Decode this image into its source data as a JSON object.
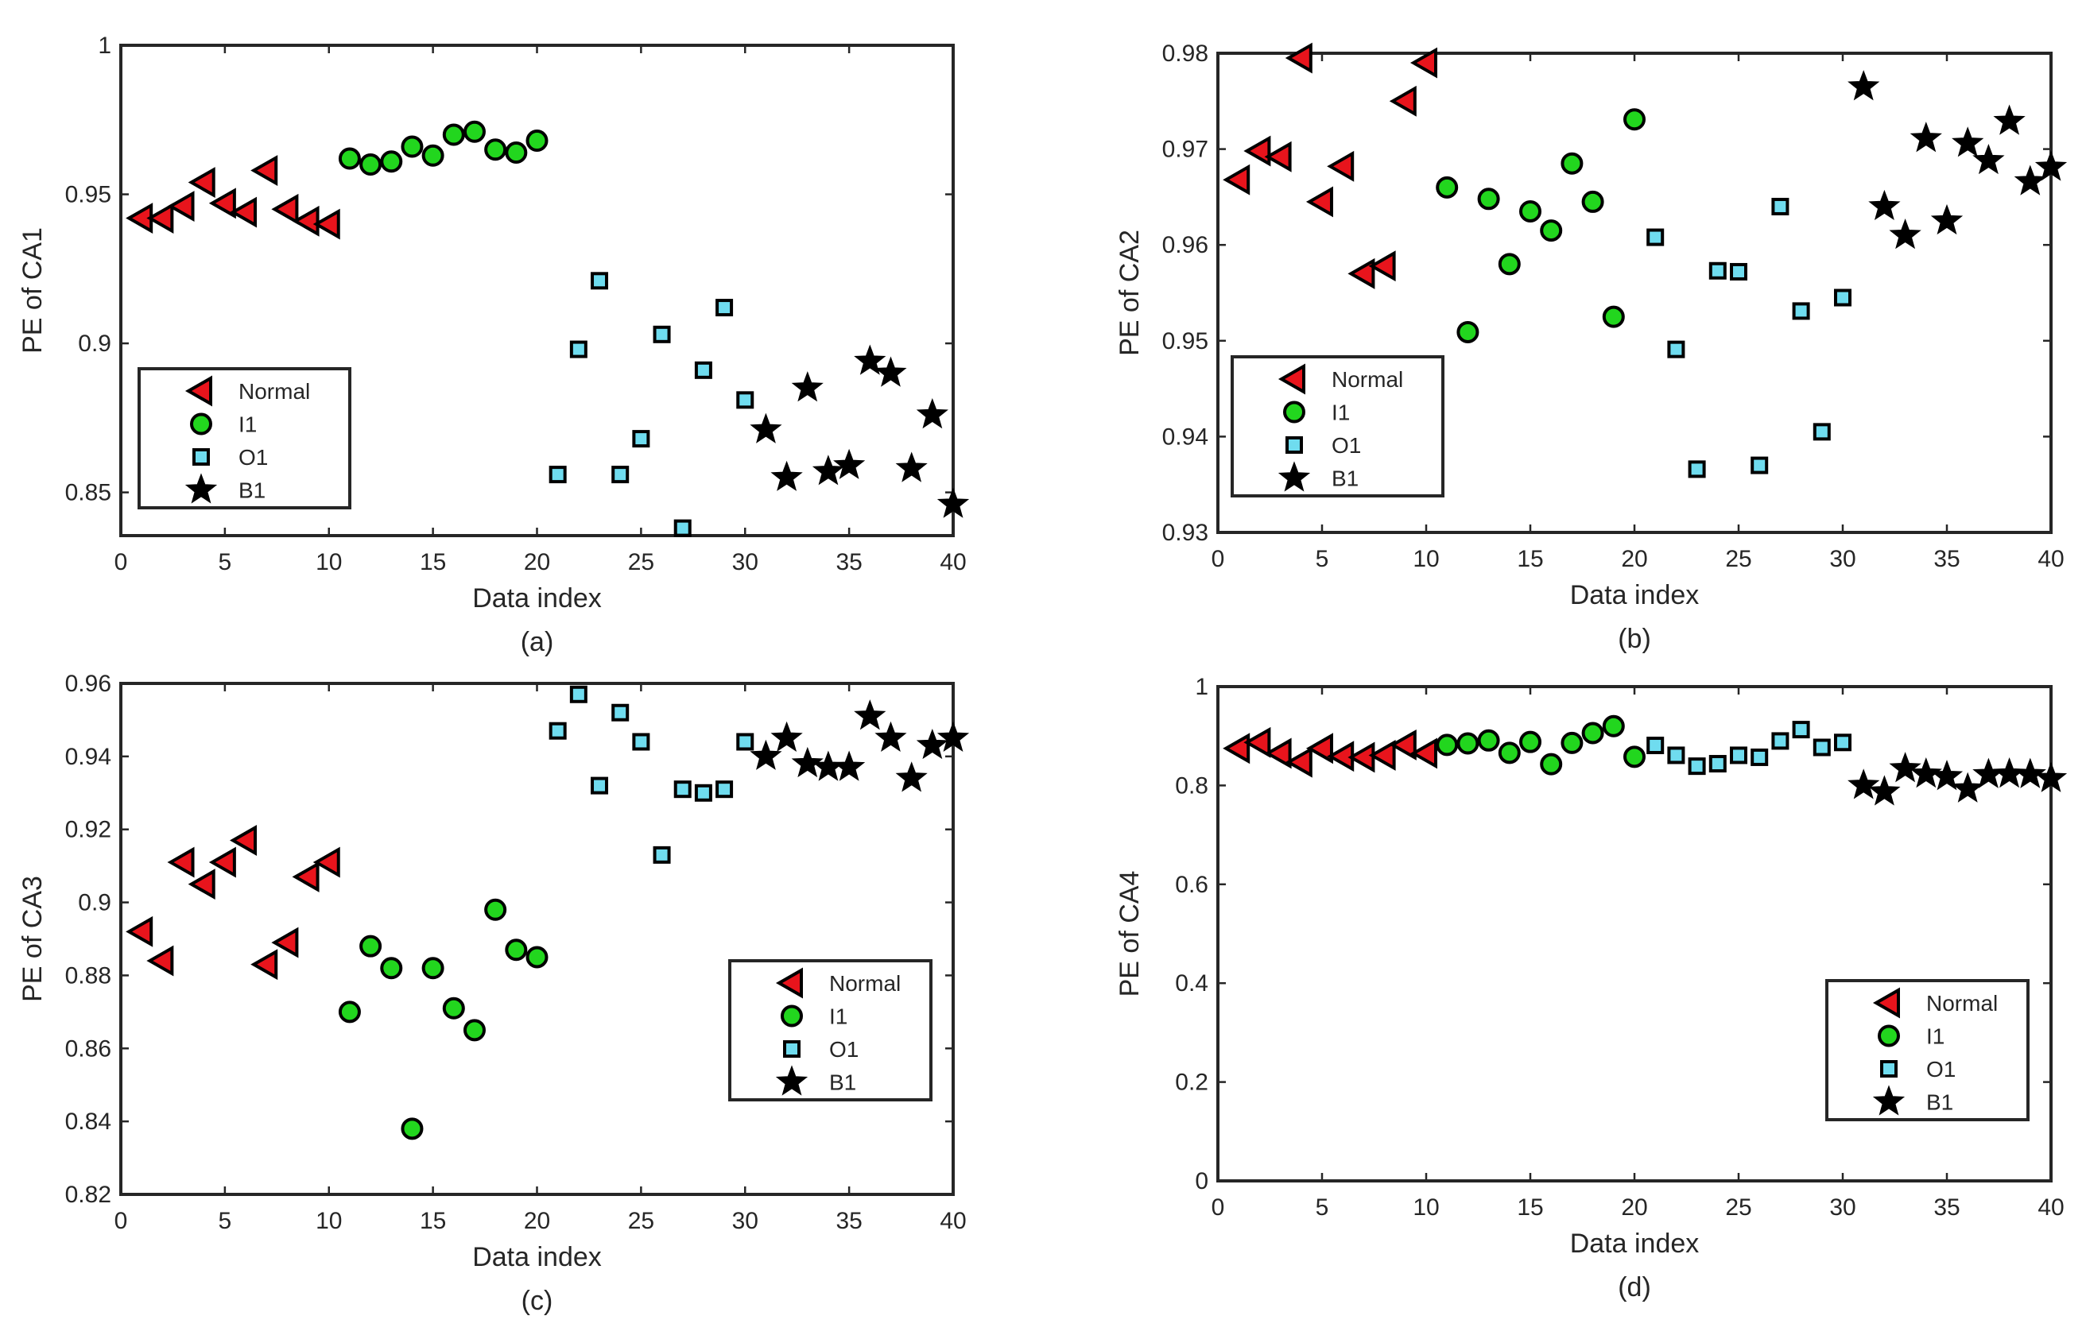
{
  "colors": {
    "normal": "#e8141c",
    "i1": "#22d61e",
    "o1": "#6fdcef",
    "b1": "#000000"
  },
  "legend_labels": [
    "Normal",
    "I1",
    "O1",
    "B1"
  ],
  "chart_data": [
    {
      "type": "scatter",
      "caption": "(a)",
      "xlabel": "Data index",
      "ylabel": "PE of CA1",
      "xlim": [
        0,
        40
      ],
      "ylim": [
        0.8355,
        1
      ],
      "xticks": [
        0,
        5,
        10,
        15,
        20,
        25,
        30,
        35,
        40
      ],
      "yticks": [
        0.85,
        0.9,
        0.95,
        1
      ],
      "ytick_labels": [
        "0.85",
        "0.9",
        "0.95",
        "1"
      ],
      "legend_position": "bottom-left",
      "series": [
        {
          "name": "Normal",
          "marker": "triangle-left",
          "x": [
            1,
            2,
            3,
            4,
            5,
            6,
            7,
            8,
            9,
            10
          ],
          "y": [
            0.942,
            0.942,
            0.946,
            0.954,
            0.947,
            0.944,
            0.958,
            0.945,
            0.941,
            0.94
          ]
        },
        {
          "name": "I1",
          "marker": "circle",
          "x": [
            11,
            12,
            13,
            14,
            15,
            16,
            17,
            18,
            19,
            20
          ],
          "y": [
            0.962,
            0.96,
            0.961,
            0.966,
            0.963,
            0.97,
            0.971,
            0.965,
            0.964,
            0.968
          ]
        },
        {
          "name": "O1",
          "marker": "square",
          "x": [
            21,
            22,
            23,
            24,
            25,
            26,
            27,
            28,
            29,
            30
          ],
          "y": [
            0.856,
            0.898,
            0.921,
            0.856,
            0.868,
            0.903,
            0.838,
            0.891,
            0.912,
            0.881
          ]
        },
        {
          "name": "B1",
          "marker": "star",
          "x": [
            31,
            32,
            33,
            34,
            35,
            36,
            37,
            38,
            39,
            40
          ],
          "y": [
            0.871,
            0.855,
            0.885,
            0.857,
            0.859,
            0.894,
            0.89,
            0.858,
            0.876,
            0.846
          ]
        }
      ]
    },
    {
      "type": "scatter",
      "caption": "(b)",
      "xlabel": "Data index",
      "ylabel": "PE of CA2",
      "xlim": [
        0,
        40
      ],
      "ylim": [
        0.93,
        0.98
      ],
      "xticks": [
        0,
        5,
        10,
        15,
        20,
        25,
        30,
        35,
        40
      ],
      "yticks": [
        0.93,
        0.94,
        0.95,
        0.96,
        0.97,
        0.98
      ],
      "ytick_labels": [
        "0.93",
        "0.94",
        "0.95",
        "0.96",
        "0.97",
        "0.98"
      ],
      "legend_position": "bottom-left",
      "series": [
        {
          "name": "Normal",
          "marker": "triangle-left",
          "x": [
            1,
            2,
            3,
            4,
            5,
            6,
            7,
            8,
            9,
            10
          ],
          "y": [
            0.9668,
            0.9698,
            0.9692,
            0.9795,
            0.9645,
            0.9682,
            0.957,
            0.9578,
            0.975,
            0.979
          ]
        },
        {
          "name": "I1",
          "marker": "circle",
          "x": [
            11,
            12,
            13,
            14,
            15,
            16,
            17,
            18,
            19,
            20
          ],
          "y": [
            0.966,
            0.9509,
            0.9648,
            0.958,
            0.9635,
            0.9615,
            0.9685,
            0.9645,
            0.9525,
            0.9731
          ]
        },
        {
          "name": "O1",
          "marker": "square",
          "x": [
            21,
            22,
            23,
            24,
            25,
            26,
            27,
            28,
            29,
            30
          ],
          "y": [
            0.9608,
            0.9491,
            0.9366,
            0.9573,
            0.9572,
            0.937,
            0.964,
            0.9531,
            0.9405,
            0.9545
          ]
        },
        {
          "name": "B1",
          "marker": "star",
          "x": [
            31,
            32,
            33,
            34,
            35,
            36,
            37,
            38,
            39,
            40
          ],
          "y": [
            0.9765,
            0.964,
            0.961,
            0.9711,
            0.9625,
            0.9706,
            0.9688,
            0.9729,
            0.9666,
            0.9681
          ]
        }
      ]
    },
    {
      "type": "scatter",
      "caption": "(c)",
      "xlabel": "Data index",
      "ylabel": "PE of CA3",
      "xlim": [
        0,
        40
      ],
      "ylim": [
        0.82,
        0.96
      ],
      "xticks": [
        0,
        5,
        10,
        15,
        20,
        25,
        30,
        35,
        40
      ],
      "yticks": [
        0.82,
        0.84,
        0.86,
        0.88,
        0.9,
        0.92,
        0.94,
        0.96
      ],
      "ytick_labels": [
        "0.82",
        "0.84",
        "0.86",
        "0.88",
        "0.9",
        "0.92",
        "0.94",
        "0.96"
      ],
      "legend_position": "right",
      "series": [
        {
          "name": "Normal",
          "marker": "triangle-left",
          "x": [
            1,
            2,
            3,
            4,
            5,
            6,
            7,
            8,
            9,
            10
          ],
          "y": [
            0.892,
            0.884,
            0.911,
            0.905,
            0.911,
            0.917,
            0.883,
            0.889,
            0.907,
            0.911
          ]
        },
        {
          "name": "I1",
          "marker": "circle",
          "x": [
            11,
            12,
            13,
            14,
            15,
            16,
            17,
            18,
            19,
            20
          ],
          "y": [
            0.87,
            0.888,
            0.882,
            0.838,
            0.882,
            0.871,
            0.865,
            0.898,
            0.887,
            0.885
          ]
        },
        {
          "name": "O1",
          "marker": "square",
          "x": [
            21,
            22,
            23,
            24,
            25,
            26,
            27,
            28,
            29,
            30
          ],
          "y": [
            0.947,
            0.957,
            0.932,
            0.952,
            0.944,
            0.913,
            0.931,
            0.93,
            0.931,
            0.944
          ]
        },
        {
          "name": "B1",
          "marker": "star",
          "x": [
            31,
            32,
            33,
            34,
            35,
            36,
            37,
            38,
            39,
            40
          ],
          "y": [
            0.94,
            0.945,
            0.938,
            0.937,
            0.937,
            0.951,
            0.945,
            0.934,
            0.943,
            0.945
          ]
        }
      ]
    },
    {
      "type": "scatter",
      "caption": "(d)",
      "xlabel": "Data index",
      "ylabel": "PE of CA4",
      "xlim": [
        0,
        40
      ],
      "ylim": [
        0,
        1
      ],
      "xticks": [
        0,
        5,
        10,
        15,
        20,
        25,
        30,
        35,
        40
      ],
      "yticks": [
        0,
        0.2,
        0.4,
        0.6,
        0.8,
        1
      ],
      "ytick_labels": [
        "0",
        "0.2",
        "0.4",
        "0.6",
        "0.8",
        "1"
      ],
      "legend_position": "bottom-right",
      "series": [
        {
          "name": "Normal",
          "marker": "triangle-left",
          "x": [
            1,
            2,
            3,
            4,
            5,
            6,
            7,
            8,
            9,
            10
          ],
          "y": [
            0.875,
            0.887,
            0.865,
            0.847,
            0.875,
            0.859,
            0.857,
            0.861,
            0.882,
            0.865
          ]
        },
        {
          "name": "I1",
          "marker": "circle",
          "x": [
            11,
            12,
            13,
            14,
            15,
            16,
            17,
            18,
            19,
            20
          ],
          "y": [
            0.882,
            0.885,
            0.891,
            0.866,
            0.888,
            0.843,
            0.886,
            0.906,
            0.92,
            0.858
          ]
        },
        {
          "name": "O1",
          "marker": "square",
          "x": [
            21,
            22,
            23,
            24,
            25,
            26,
            27,
            28,
            29,
            30
          ],
          "y": [
            0.881,
            0.861,
            0.839,
            0.844,
            0.861,
            0.857,
            0.89,
            0.913,
            0.877,
            0.887
          ]
        },
        {
          "name": "B1",
          "marker": "star",
          "x": [
            31,
            32,
            33,
            34,
            35,
            36,
            37,
            38,
            39,
            40
          ],
          "y": [
            0.8,
            0.787,
            0.834,
            0.823,
            0.818,
            0.793,
            0.822,
            0.823,
            0.822,
            0.814
          ]
        }
      ]
    }
  ]
}
